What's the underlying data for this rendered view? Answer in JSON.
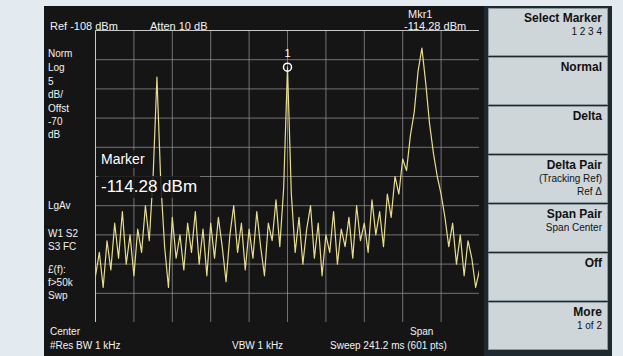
{
  "chart_data": {
    "type": "line",
    "x": [
      0,
      0.1,
      0.2,
      0.3,
      0.4,
      0.5,
      0.6,
      0.7,
      0.8,
      0.9,
      1,
      1.1,
      1.2,
      1.3,
      1.4,
      1.5,
      1.6,
      1.7,
      1.8,
      1.9,
      2,
      2.1,
      2.2,
      2.3,
      2.4,
      2.5,
      2.6,
      2.7,
      2.8,
      2.9,
      3,
      3.1,
      3.2,
      3.3,
      3.4,
      3.5,
      3.6,
      3.7,
      3.8,
      3.9,
      4,
      4.1,
      4.2,
      4.3,
      4.4,
      4.5,
      4.6,
      4.7,
      4.8,
      4.9,
      5,
      5.1,
      5.2,
      5.3,
      5.4,
      5.5,
      5.6,
      5.7,
      5.8,
      5.9,
      6,
      6.1,
      6.2,
      6.3,
      6.4,
      6.5,
      6.6,
      6.7,
      6.8,
      6.9,
      7,
      7.1,
      7.2,
      7.3,
      7.4,
      7.5,
      7.6,
      7.7,
      7.8,
      7.9,
      8,
      8.1,
      8.2,
      8.3,
      8.4,
      8.5,
      8.6,
      8.7,
      8.8,
      8.9,
      9,
      9.1,
      9.2,
      9.3,
      9.4,
      9.5,
      9.6,
      9.7,
      9.8,
      9.9,
      10
    ],
    "values": [
      -150,
      -146,
      -152,
      -144,
      -149,
      -141,
      -147,
      -139,
      -148,
      -143,
      -150,
      -142,
      -146,
      -138,
      -144,
      -133,
      -116,
      -134,
      -145,
      -152,
      -140,
      -147,
      -143,
      -149,
      -141,
      -146,
      -139,
      -148,
      -142,
      -150,
      -141,
      -147,
      -140,
      -145,
      -151,
      -143,
      -138,
      -146,
      -141,
      -149,
      -142,
      -147,
      -139,
      -145,
      -150,
      -141,
      -144,
      -137,
      -145,
      -135,
      -114.28,
      -136,
      -146,
      -140,
      -148,
      -142,
      -138,
      -147,
      -141,
      -150,
      -143,
      -146,
      -139,
      -148,
      -142,
      -145,
      -140,
      -147,
      -138,
      -144,
      -141,
      -146,
      -137,
      -143,
      -139,
      -145,
      -136,
      -140,
      -133,
      -136,
      -130,
      -132,
      -126,
      -122,
      -115,
      -111,
      -117,
      -124,
      -129,
      -133,
      -136,
      -140,
      -145,
      -141,
      -148,
      -143,
      -150,
      -144,
      -147,
      -152,
      -149
    ],
    "color": "#e8dc8e",
    "xlim": [
      0,
      10
    ],
    "xticks": [
      0,
      1,
      2,
      3,
      4,
      5,
      6,
      7,
      8,
      9,
      10
    ],
    "ylim": [
      -158,
      -108
    ],
    "yticks": [
      -158,
      -153,
      -148,
      -143,
      -138,
      -133,
      -128,
      -123,
      -118,
      -113,
      -108
    ],
    "grid": true,
    "tick_labels": false,
    "marker_point": {
      "label": "1",
      "x": 5,
      "value": -114.28
    },
    "annotations": [
      "Marker",
      "-114.28 dBm"
    ]
  },
  "screen": {
    "header": [
      "Ref -108 dBm",
      "Atten 10 dB",
      "Mkr1",
      "-114.28 dBm"
    ],
    "left_panel": [
      "Norm",
      "Log",
      "5",
      "dB/",
      "Offst",
      "-70",
      "dB",
      "LgAv",
      "W1 S2",
      "S3 FC",
      "£(f):",
      "f>50k",
      "Swp"
    ],
    "footer": [
      "Center",
      "#Res BW 1 kHz",
      "VBW 1 kHz",
      "Span",
      "Sweep 241.2 ms (601 pts)"
    ],
    "softkeys": [
      {
        "label": "Select Marker",
        "lines": [
          "1 2 3 4"
        ]
      },
      {
        "label": "Normal",
        "lines": []
      },
      {
        "label": "Delta",
        "lines": []
      },
      {
        "label": "Delta Pair",
        "lines": [
          "(Tracking Ref)",
          "Ref Δ"
        ]
      },
      {
        "label": "Span Pair",
        "lines": [
          "Span Center"
        ]
      },
      {
        "label": "Off",
        "lines": []
      },
      {
        "label": "More",
        "lines": [
          "1 of 2"
        ]
      }
    ]
  }
}
